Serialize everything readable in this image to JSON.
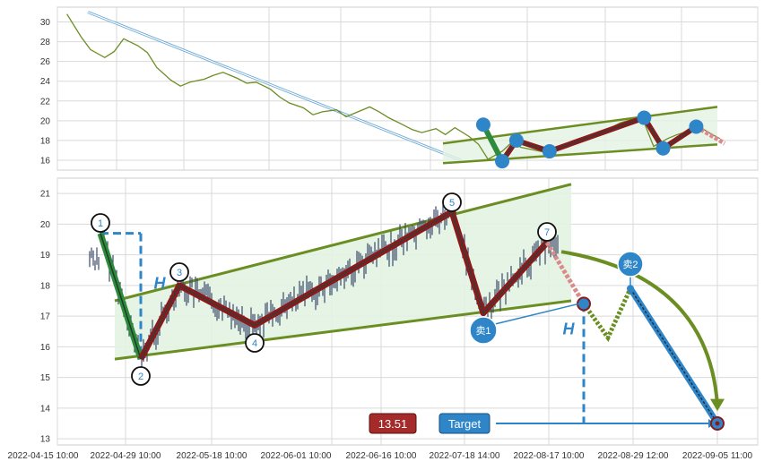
{
  "colors": {
    "grid": "#d9d9d9",
    "axis_text": "#333333",
    "price_line": "#6b8e23",
    "candle": "#3b4a6b",
    "channel": "#6b8e23",
    "channel_fill": "#e3f3e3",
    "zigzag_outer": "#8b1a1a",
    "zigzag_inner": "#3a3a3a",
    "up_leg": "#2e8b3e",
    "node": "#2e86c8",
    "projection": "#2e86c8",
    "badge_red": "#a52a2a",
    "badge_blue": "#2e86c8"
  },
  "chart_data": [
    {
      "type": "line",
      "panel": "overview",
      "ylim": [
        15,
        31.5
      ],
      "y_ticks": [
        "16",
        "18",
        "20",
        "22",
        "24",
        "26",
        "28",
        "30"
      ],
      "series": [
        {
          "x": [
            "2022-04-17",
            "2022-04-20",
            "2022-04-22",
            "2022-04-25",
            "2022-04-27",
            "2022-04-29",
            "2022-05-02",
            "2022-05-04",
            "2022-05-06",
            "2022-05-09",
            "2022-05-11",
            "2022-05-13",
            "2022-05-16",
            "2022-05-18",
            "2022-05-20",
            "2022-05-23",
            "2022-05-25",
            "2022-05-27",
            "2022-05-30",
            "2022-06-01",
            "2022-06-03",
            "2022-06-06",
            "2022-06-08",
            "2022-06-10",
            "2022-06-13",
            "2022-06-15",
            "2022-06-17",
            "2022-06-20",
            "2022-06-22",
            "2022-06-24",
            "2022-06-27",
            "2022-06-29",
            "2022-07-01",
            "2022-07-04",
            "2022-07-06",
            "2022-07-08",
            "2022-07-11",
            "2022-07-13",
            "2022-07-15",
            "2022-07-18",
            "2022-07-20",
            "2022-07-22",
            "2022-07-25",
            "2022-07-27",
            "2022-07-29",
            "2022-08-01",
            "2022-08-03",
            "2022-08-05",
            "2022-08-08",
            "2022-08-10",
            "2022-08-12",
            "2022-08-15",
            "2022-08-17",
            "2022-08-19",
            "2022-08-22",
            "2022-08-24",
            "2022-08-26",
            "2022-08-29",
            "2022-08-31",
            "2022-09-02"
          ],
          "values": [
            30.8,
            28.5,
            27.2,
            26.4,
            27.0,
            28.3,
            27.6,
            26.9,
            25.4,
            24.1,
            23.5,
            23.9,
            24.2,
            24.6,
            24.9,
            24.3,
            23.8,
            23.9,
            23.2,
            22.4,
            21.8,
            21.3,
            20.6,
            20.9,
            21.1,
            20.4,
            20.8,
            21.4,
            20.9,
            20.3,
            19.6,
            19.1,
            18.8,
            19.2,
            18.6,
            19.3,
            18.4,
            17.6,
            16.1,
            16.9,
            17.8,
            17.3,
            17.0,
            16.8,
            17.2,
            17.6,
            18.1,
            18.4,
            18.9,
            19.3,
            19.8,
            20.2,
            19.8,
            17.4,
            18.2,
            18.6,
            18.9,
            19.3,
            18.7,
            18.2
          ]
        }
      ],
      "zigzag_dates": [
        "2022-07-14",
        "2022-07-18",
        "2022-07-21",
        "2022-07-28",
        "2022-08-17",
        "2022-08-21",
        "2022-08-28",
        "2022-09-03"
      ],
      "zigzag_values": [
        19.6,
        15.9,
        18.0,
        16.9,
        20.3,
        17.2,
        19.4,
        17.7
      ]
    },
    {
      "type": "candlestick",
      "panel": "detail",
      "ylim": [
        12.8,
        21.5
      ],
      "y_ticks": [
        "13",
        "14",
        "15",
        "16",
        "17",
        "18",
        "19",
        "20",
        "21"
      ],
      "x_ticks": [
        "2022-04-15 10:00",
        "2022-04-29 10:00",
        "2022-05-18 10:00",
        "2022-06-01 10:00",
        "2022-06-16 10:00",
        "2022-07-18 14:00",
        "2022-08-17 10:00",
        "2022-08-29 12:00",
        "2022-09-05 11:00"
      ],
      "points": [
        {
          "id": "1",
          "value": 19.7
        },
        {
          "id": "2",
          "value": 15.6
        },
        {
          "id": "3",
          "value": 18.0
        },
        {
          "id": "4",
          "value": 16.7
        },
        {
          "id": "5",
          "value": 20.4
        },
        {
          "id": "6",
          "value": 17.1
        },
        {
          "id": "7",
          "value": 19.4
        }
      ],
      "zigzag_values": [
        19.7,
        15.6,
        18.0,
        16.7,
        20.4,
        17.1,
        19.4
      ],
      "channel": {
        "upper": [
          17.5,
          21.3
        ],
        "lower": [
          15.6,
          17.5
        ]
      },
      "projection_values": [
        17.4,
        16.3,
        17.9,
        13.5
      ],
      "labels": {
        "H": "H",
        "sell1": "卖1",
        "sell2": "卖2",
        "target_value": "13.51",
        "target_label": "Target"
      }
    }
  ]
}
